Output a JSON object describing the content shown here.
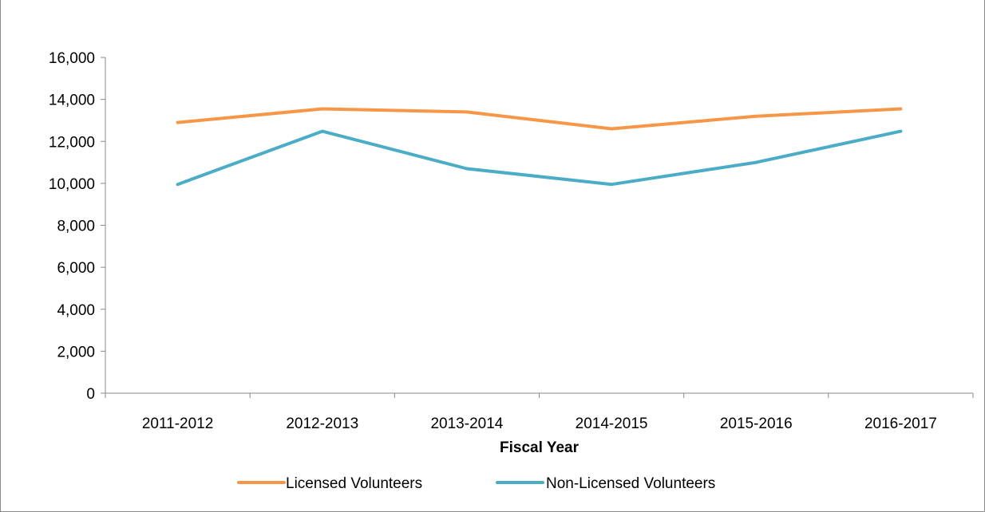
{
  "chart_data": {
    "type": "line",
    "title": "",
    "xlabel": "Fiscal Year",
    "ylabel": "",
    "categories": [
      "2011-2012",
      "2012-2013",
      "2013-2014",
      "2014-2015",
      "2015-2016",
      "2016-2017"
    ],
    "ylim": [
      0,
      16000
    ],
    "yticks": [
      0,
      2000,
      4000,
      6000,
      8000,
      10000,
      12000,
      14000,
      16000
    ],
    "ytick_labels": [
      "0",
      "2,000",
      "4,000",
      "6,000",
      "8,000",
      "10,000",
      "12,000",
      "14,000",
      "16,000"
    ],
    "grid": false,
    "legend_position": "bottom",
    "series": [
      {
        "name": "Licensed Volunteers",
        "color": "#F79646",
        "values": [
          12900,
          13550,
          13400,
          12600,
          13200,
          13550
        ]
      },
      {
        "name": "Non-Licensed Volunteers",
        "color": "#4BACC6",
        "values": [
          9950,
          12480,
          10700,
          9950,
          11000,
          12480
        ]
      }
    ]
  }
}
